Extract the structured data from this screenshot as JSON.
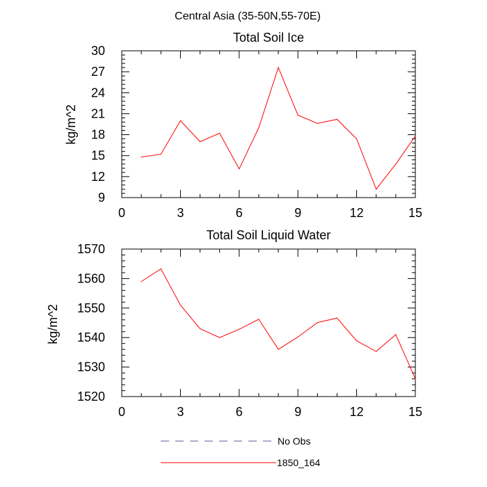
{
  "figure_title": "Central Asia (35-50N,55-70E)",
  "chart_data": [
    {
      "type": "line",
      "title": "Total Soil Ice",
      "xlabel": "",
      "ylabel": "kg/m^2",
      "xlim": [
        0,
        15
      ],
      "ylim": [
        9,
        30
      ],
      "xticks": [
        0,
        3,
        6,
        9,
        12,
        15
      ],
      "yticks": [
        9,
        12,
        15,
        18,
        21,
        24,
        27,
        30
      ],
      "series": [
        {
          "name": "1850_164",
          "color": "#ff0000",
          "x": [
            1,
            2,
            3,
            4,
            5,
            6,
            7,
            8,
            9,
            10,
            11,
            12,
            13,
            14,
            15
          ],
          "values": [
            14.8,
            15.2,
            20.0,
            17.0,
            18.2,
            13.1,
            19.0,
            27.6,
            20.8,
            19.6,
            20.2,
            17.4,
            10.2,
            13.8,
            17.8
          ]
        }
      ]
    },
    {
      "type": "line",
      "title": "Total Soil Liquid Water",
      "xlabel": "",
      "ylabel": "kg/m^2",
      "xlim": [
        0,
        15
      ],
      "ylim": [
        1520,
        1570
      ],
      "xticks": [
        0,
        3,
        6,
        9,
        12,
        15
      ],
      "yticks": [
        1520,
        1530,
        1540,
        1550,
        1560,
        1570
      ],
      "series": [
        {
          "name": "1850_164",
          "color": "#ff0000",
          "x": [
            1,
            2,
            3,
            4,
            5,
            6,
            7,
            8,
            9,
            10,
            11,
            12,
            13,
            14,
            15
          ],
          "values": [
            1559,
            1563.3,
            1551,
            1543,
            1540,
            1542.8,
            1546.2,
            1536,
            1540.2,
            1545.1,
            1546.6,
            1538.9,
            1535.3,
            1541,
            1526
          ]
        }
      ]
    }
  ],
  "legend": [
    {
      "label": "No Obs",
      "color": "#5a5a9a",
      "dash": "dashed"
    },
    {
      "label": "1850_164",
      "color": "#ff0000",
      "dash": "solid"
    }
  ]
}
